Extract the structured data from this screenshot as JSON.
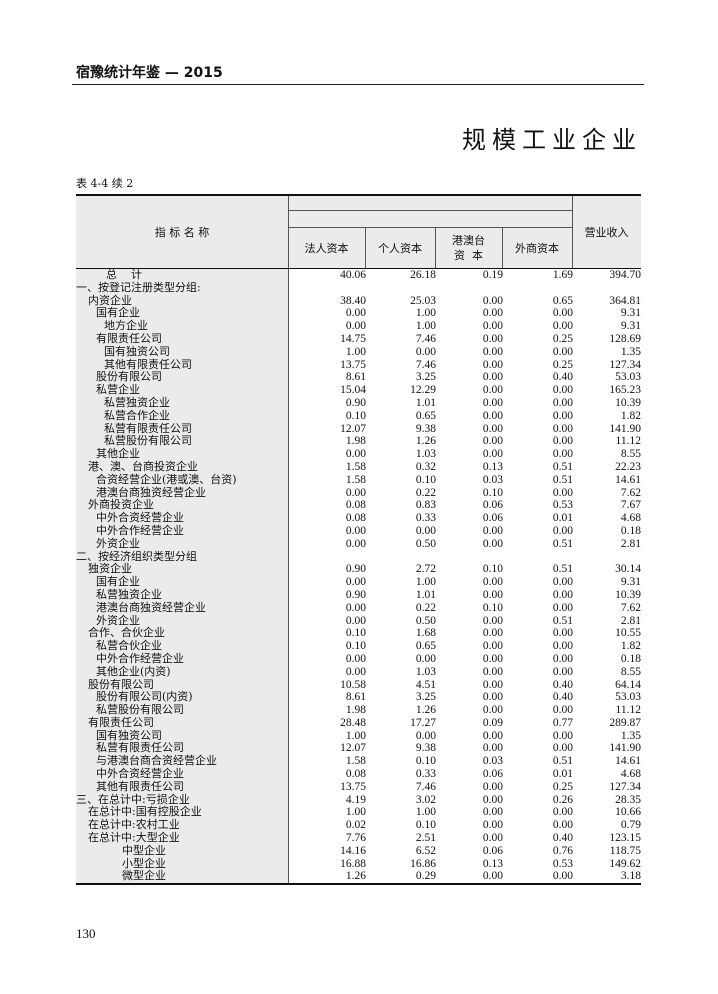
{
  "running_head": "宿豫统计年鉴 — 2015",
  "section_title": "规模工业企业",
  "table_label": "表 4-4 续 2",
  "columns": {
    "indicator": "指 标 名 称",
    "c1": "法人资本",
    "c2": "个人资本",
    "c3a": "港澳台",
    "c3b": "资  本",
    "c4": "外商资本",
    "c5": "营业收入"
  },
  "rows": [
    {
      "name": "总    计",
      "level": "total",
      "v": [
        "40.06",
        "26.18",
        "0.19",
        "1.69",
        "394.70"
      ]
    },
    {
      "name": "一、按登记注册类型分组:",
      "level": 0,
      "v": []
    },
    {
      "name": "内资企业",
      "level": 1,
      "v": [
        "38.40",
        "25.03",
        "0.00",
        "0.65",
        "364.81"
      ]
    },
    {
      "name": "国有企业",
      "level": 2,
      "v": [
        "0.00",
        "1.00",
        "0.00",
        "0.00",
        "9.31"
      ]
    },
    {
      "name": "地方企业",
      "level": 3,
      "v": [
        "0.00",
        "1.00",
        "0.00",
        "0.00",
        "9.31"
      ]
    },
    {
      "name": "有限责任公司",
      "level": 2,
      "v": [
        "14.75",
        "7.46",
        "0.00",
        "0.25",
        "128.69"
      ]
    },
    {
      "name": "国有独资公司",
      "level": 3,
      "v": [
        "1.00",
        "0.00",
        "0.00",
        "0.00",
        "1.35"
      ]
    },
    {
      "name": "其他有限责任公司",
      "level": 3,
      "v": [
        "13.75",
        "7.46",
        "0.00",
        "0.25",
        "127.34"
      ]
    },
    {
      "name": "股份有限公司",
      "level": 2,
      "v": [
        "8.61",
        "3.25",
        "0.00",
        "0.40",
        "53.03"
      ]
    },
    {
      "name": "私营企业",
      "level": 2,
      "v": [
        "15.04",
        "12.29",
        "0.00",
        "0.00",
        "165.23"
      ]
    },
    {
      "name": "私营独资企业",
      "level": 3,
      "v": [
        "0.90",
        "1.01",
        "0.00",
        "0.00",
        "10.39"
      ]
    },
    {
      "name": "私营合作企业",
      "level": 3,
      "v": [
        "0.10",
        "0.65",
        "0.00",
        "0.00",
        "1.82"
      ]
    },
    {
      "name": "私营有限责任公司",
      "level": 3,
      "v": [
        "12.07",
        "9.38",
        "0.00",
        "0.00",
        "141.90"
      ]
    },
    {
      "name": "私营股份有限公司",
      "level": 3,
      "v": [
        "1.98",
        "1.26",
        "0.00",
        "0.00",
        "11.12"
      ]
    },
    {
      "name": "其他企业",
      "level": 2,
      "v": [
        "0.00",
        "1.03",
        "0.00",
        "0.00",
        "8.55"
      ]
    },
    {
      "name": "港、澳、台商投资企业",
      "level": 1,
      "v": [
        "1.58",
        "0.32",
        "0.13",
        "0.51",
        "22.23"
      ]
    },
    {
      "name": "合资经营企业(港或澳、台资)",
      "level": 2,
      "v": [
        "1.58",
        "0.10",
        "0.03",
        "0.51",
        "14.61"
      ]
    },
    {
      "name": "港澳台商独资经营企业",
      "level": 2,
      "v": [
        "0.00",
        "0.22",
        "0.10",
        "0.00",
        "7.62"
      ]
    },
    {
      "name": "外商投资企业",
      "level": 1,
      "v": [
        "0.08",
        "0.83",
        "0.06",
        "0.53",
        "7.67"
      ]
    },
    {
      "name": "中外合资经营企业",
      "level": 2,
      "v": [
        "0.08",
        "0.33",
        "0.06",
        "0.01",
        "4.68"
      ]
    },
    {
      "name": "中外合作经营企业",
      "level": 2,
      "v": [
        "0.00",
        "0.00",
        "0.00",
        "0.00",
        "0.18"
      ]
    },
    {
      "name": "外资企业",
      "level": 2,
      "v": [
        "0.00",
        "0.50",
        "0.00",
        "0.51",
        "2.81"
      ]
    },
    {
      "name": "二、按经济组织类型分组",
      "level": 0,
      "v": []
    },
    {
      "name": "独资企业",
      "level": 1,
      "v": [
        "0.90",
        "2.72",
        "0.10",
        "0.51",
        "30.14"
      ]
    },
    {
      "name": "国有企业",
      "level": 2,
      "v": [
        "0.00",
        "1.00",
        "0.00",
        "0.00",
        "9.31"
      ]
    },
    {
      "name": "私营独资企业",
      "level": 2,
      "v": [
        "0.90",
        "1.01",
        "0.00",
        "0.00",
        "10.39"
      ]
    },
    {
      "name": "港澳台商独资经营企业",
      "level": 2,
      "v": [
        "0.00",
        "0.22",
        "0.10",
        "0.00",
        "7.62"
      ]
    },
    {
      "name": "外资企业",
      "level": 2,
      "v": [
        "0.00",
        "0.50",
        "0.00",
        "0.51",
        "2.81"
      ]
    },
    {
      "name": "合作、合伙企业",
      "level": 1,
      "v": [
        "0.10",
        "1.68",
        "0.00",
        "0.00",
        "10.55"
      ]
    },
    {
      "name": "私营合伙企业",
      "level": 2,
      "v": [
        "0.10",
        "0.65",
        "0.00",
        "0.00",
        "1.82"
      ]
    },
    {
      "name": "中外合作经营企业",
      "level": 2,
      "v": [
        "0.00",
        "0.00",
        "0.00",
        "0.00",
        "0.18"
      ]
    },
    {
      "name": "其他企业(内资)",
      "level": 2,
      "v": [
        "0.00",
        "1.03",
        "0.00",
        "0.00",
        "8.55"
      ]
    },
    {
      "name": "股份有限公司",
      "level": 1,
      "v": [
        "10.58",
        "4.51",
        "0.00",
        "0.40",
        "64.14"
      ]
    },
    {
      "name": "股份有限公司(内资)",
      "level": 2,
      "v": [
        "8.61",
        "3.25",
        "0.00",
        "0.40",
        "53.03"
      ]
    },
    {
      "name": "私营股份有限公司",
      "level": 2,
      "v": [
        "1.98",
        "1.26",
        "0.00",
        "0.00",
        "11.12"
      ]
    },
    {
      "name": "有限责任公司",
      "level": 1,
      "v": [
        "28.48",
        "17.27",
        "0.09",
        "0.77",
        "289.87"
      ]
    },
    {
      "name": "国有独资公司",
      "level": 2,
      "v": [
        "1.00",
        "0.00",
        "0.00",
        "0.00",
        "1.35"
      ]
    },
    {
      "name": "私营有限责任公司",
      "level": 2,
      "v": [
        "12.07",
        "9.38",
        "0.00",
        "0.00",
        "141.90"
      ]
    },
    {
      "name": "与港澳台商合资经营企业",
      "level": 2,
      "v": [
        "1.58",
        "0.10",
        "0.03",
        "0.51",
        "14.61"
      ]
    },
    {
      "name": "中外合资经营企业",
      "level": 2,
      "v": [
        "0.08",
        "0.33",
        "0.06",
        "0.01",
        "4.68"
      ]
    },
    {
      "name": "其他有限责任公司",
      "level": 2,
      "v": [
        "13.75",
        "7.46",
        "0.00",
        "0.25",
        "127.34"
      ]
    },
    {
      "name": "三、在总计中:亏损企业",
      "level": 0,
      "v": [
        "4.19",
        "3.02",
        "0.00",
        "0.26",
        "28.35"
      ]
    },
    {
      "name": "在总计中:国有控股企业",
      "level": 1,
      "v": [
        "1.00",
        "1.00",
        "0.00",
        "0.00",
        "10.66"
      ]
    },
    {
      "name": "在总计中:农村工业",
      "level": 1,
      "v": [
        "0.02",
        "0.10",
        "0.00",
        "0.00",
        "0.79"
      ]
    },
    {
      "name": "在总计中:大型企业",
      "level": 1,
      "v": [
        "7.76",
        "2.51",
        "0.00",
        "0.40",
        "123.15"
      ]
    },
    {
      "name": "中型企业",
      "level": "sub",
      "v": [
        "14.16",
        "6.52",
        "0.06",
        "0.76",
        "118.75"
      ]
    },
    {
      "name": "小型企业",
      "level": "sub",
      "v": [
        "16.88",
        "16.86",
        "0.13",
        "0.53",
        "149.62"
      ]
    },
    {
      "name": "微型企业",
      "level": "sub",
      "v": [
        "1.26",
        "0.29",
        "0.00",
        "0.00",
        "3.18"
      ]
    }
  ],
  "page_number": "130"
}
